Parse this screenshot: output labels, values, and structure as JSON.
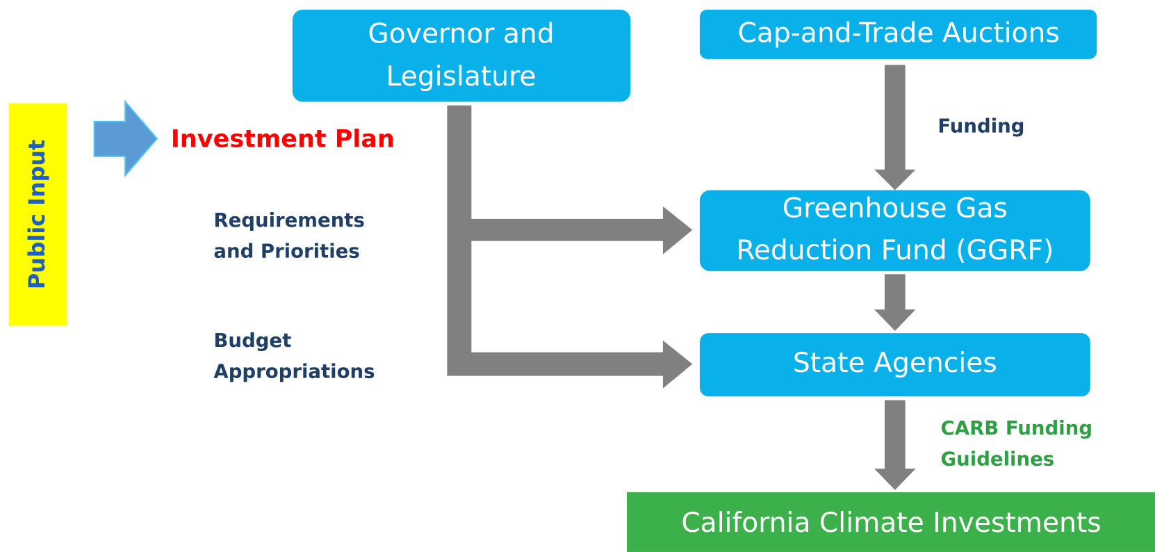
{
  "side_label": "Public Input",
  "input_label": "Investment Plan",
  "nodes": [
    {
      "lines": [
        "Governor and",
        "Legislature"
      ]
    },
    {
      "lines": [
        "Cap-and-Trade Auctions"
      ]
    },
    {
      "lines": [
        "Greenhouse Gas",
        "Reduction Fund (GGRF)"
      ]
    },
    {
      "lines": [
        "State Agencies"
      ]
    },
    {
      "lines": [
        "California Climate Investments"
      ]
    }
  ],
  "edge_labels": [
    {
      "lines": [
        "Funding"
      ]
    },
    {
      "lines": [
        "Requirements",
        "and Priorities"
      ]
    },
    {
      "lines": [
        "Budget",
        "Appropriations"
      ]
    },
    {
      "lines": [
        "CARB Funding",
        "Guidelines"
      ]
    }
  ]
}
